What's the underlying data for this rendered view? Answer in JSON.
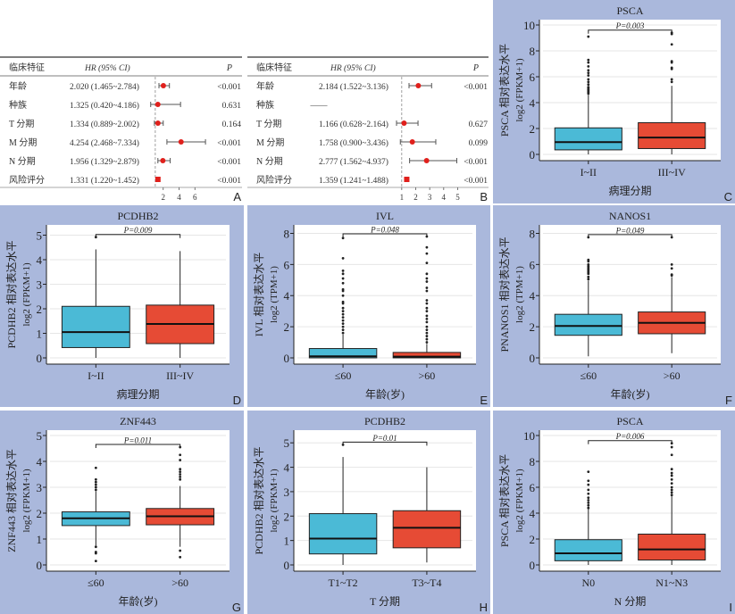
{
  "chart_data": [
    {
      "id": "A",
      "type": "forest",
      "panel_label": "A",
      "columns": {
        "feature": "临床特征",
        "hr": "HR (95% CI)",
        "p": "P"
      },
      "rows": [
        {
          "feature": "年龄",
          "hr_text": "2.020 (1.465~2.784)",
          "hr": 2.02,
          "lo": 1.465,
          "hi": 2.784,
          "p": "<0.001"
        },
        {
          "feature": "种族",
          "hr_text": "1.325 (0.420~4.186)",
          "hr": 1.325,
          "lo": 0.42,
          "hi": 4.186,
          "p": "0.631"
        },
        {
          "feature": "T 分期",
          "hr_text": "1.334 (0.889~2.002)",
          "hr": 1.334,
          "lo": 0.889,
          "hi": 2.002,
          "p": "0.164"
        },
        {
          "feature": "M 分期",
          "hr_text": "4.254 (2.468~7.334)",
          "hr": 4.254,
          "lo": 2.468,
          "hi": 7.334,
          "p": "<0.001"
        },
        {
          "feature": "N 分期",
          "hr_text": "1.956 (1.329~2.879)",
          "hr": 1.956,
          "lo": 1.329,
          "hi": 2.879,
          "p": "<0.001"
        },
        {
          "feature": "风险评分",
          "hr_text": "1.331 (1.220~1.452)",
          "hr": 1.331,
          "lo": 1.22,
          "hi": 1.452,
          "p": "<0.001"
        }
      ],
      "xlim": [
        0,
        8
      ],
      "xticks": [
        2,
        4,
        6
      ],
      "reference_line": 1
    },
    {
      "id": "B",
      "type": "forest",
      "panel_label": "B",
      "columns": {
        "feature": "临床特征",
        "hr": "HR (95% CI)",
        "p": "P"
      },
      "rows": [
        {
          "feature": "年龄",
          "hr_text": "2.184 (1.522~3.136)",
          "hr": 2.184,
          "lo": 1.522,
          "hi": 3.136,
          "p": "<0.001"
        },
        {
          "feature": "种族",
          "hr_text": "——",
          "hr": null,
          "lo": null,
          "hi": null,
          "p": ""
        },
        {
          "feature": "T 分期",
          "hr_text": "1.166 (0.628~2.164)",
          "hr": 1.166,
          "lo": 0.628,
          "hi": 2.164,
          "p": "0.627"
        },
        {
          "feature": "M 分期",
          "hr_text": "1.758 (0.900~3.436)",
          "hr": 1.758,
          "lo": 0.9,
          "hi": 3.436,
          "p": "0.099"
        },
        {
          "feature": "N 分期",
          "hr_text": "2.777 (1.562~4.937)",
          "hr": 2.777,
          "lo": 1.562,
          "hi": 4.937,
          "p": "<0.001"
        },
        {
          "feature": "风险评分",
          "hr_text": "1.359 (1.241~1.488)",
          "hr": 1.359,
          "lo": 1.241,
          "hi": 1.488,
          "p": "<0.001"
        }
      ],
      "xlim": [
        0.5,
        5.8
      ],
      "xticks": [
        1,
        2,
        3,
        4,
        5
      ],
      "reference_line": 1
    },
    {
      "id": "C",
      "type": "box",
      "panel_label": "C",
      "title": "PSCA",
      "pvalue": "P=0.003",
      "ylabel": "PSCA 相对表达水平",
      "ylabel2": "log2 (FPKM+1)",
      "xlabel": "病理分期",
      "ylim": [
        0,
        10
      ],
      "yticks": [
        0,
        2,
        4,
        6,
        8,
        10
      ],
      "groups": [
        {
          "name": "I~II",
          "min": 0.0,
          "q1": 0.35,
          "median": 0.95,
          "q3": 2.05,
          "max": 4.6,
          "outliers": [
            4.7,
            4.8,
            4.9,
            5.0,
            5.1,
            5.2,
            5.4,
            5.6,
            5.8,
            6.1,
            6.3,
            6.5,
            6.8,
            7.1,
            7.3,
            9.1
          ]
        },
        {
          "name": "III~IV",
          "min": 0.0,
          "q1": 0.45,
          "median": 1.3,
          "q3": 2.45,
          "max": 5.3,
          "outliers": [
            5.6,
            5.8,
            6.6,
            6.7,
            7.1,
            7.2,
            8.5,
            9.3,
            9.4
          ]
        }
      ]
    },
    {
      "id": "D",
      "type": "box",
      "panel_label": "D",
      "title": "PCDHB2",
      "pvalue": "P=0.009",
      "ylabel": "PCDHB2 相对表达水平",
      "ylabel2": "log2 (FPKM+1)",
      "xlabel": "病理分期",
      "ylim": [
        0,
        5.2
      ],
      "yticks": [
        0,
        1,
        2,
        3,
        4,
        5
      ],
      "groups": [
        {
          "name": "I~II",
          "min": 0.0,
          "q1": 0.42,
          "median": 1.05,
          "q3": 2.1,
          "max": 4.42,
          "outliers": [
            4.92
          ]
        },
        {
          "name": "III~IV",
          "min": 0.0,
          "q1": 0.58,
          "median": 1.38,
          "q3": 2.15,
          "max": 4.35,
          "outliers": []
        }
      ]
    },
    {
      "id": "E",
      "type": "box",
      "panel_label": "E",
      "title": "IVL",
      "pvalue": "P=0.048",
      "ylabel": "IVL 相对表达水平",
      "ylabel2": "log2 (TPM+1)",
      "xlabel": "年龄(岁)",
      "ylim": [
        0,
        8.2
      ],
      "yticks": [
        0,
        2,
        4,
        6,
        8
      ],
      "groups": [
        {
          "name": "≤60",
          "min": 0.0,
          "q1": 0.0,
          "median": 0.1,
          "q3": 0.6,
          "max": 1.5,
          "outliers": [
            1.6,
            1.8,
            2.0,
            2.2,
            2.4,
            2.6,
            2.8,
            3.0,
            3.2,
            3.5,
            3.6,
            4.0,
            4.3,
            4.4,
            4.8,
            5.1,
            5.4,
            5.6,
            6.4,
            7.7
          ]
        },
        {
          "name": ">60",
          "min": 0.0,
          "q1": 0.0,
          "median": 0.08,
          "q3": 0.35,
          "max": 0.9,
          "outliers": [
            1.0,
            1.2,
            1.4,
            1.6,
            1.8,
            2.0,
            2.3,
            2.5,
            2.7,
            3.0,
            3.2,
            3.5,
            3.7,
            4.3,
            4.5,
            4.9,
            5.1,
            5.4,
            6.1,
            6.7,
            7.1,
            7.8
          ]
        }
      ]
    },
    {
      "id": "F",
      "type": "box",
      "panel_label": "F",
      "title": "NANOS1",
      "pvalue": "P=0.049",
      "ylabel": "PNANOS1 相对表达水平",
      "ylabel2": "log2 (TPM+1)",
      "xlabel": "年龄(岁)",
      "ylim": [
        0,
        8.2
      ],
      "yticks": [
        0,
        2,
        4,
        6,
        8
      ],
      "groups": [
        {
          "name": "≤60",
          "min": 0.1,
          "q1": 1.45,
          "median": 2.05,
          "q3": 2.8,
          "max": 4.95,
          "outliers": [
            5.05,
            5.2,
            5.4,
            5.5,
            5.6,
            5.7,
            5.8,
            5.9,
            6.0,
            6.2,
            6.3,
            7.75
          ]
        },
        {
          "name": ">60",
          "min": 0.3,
          "q1": 1.55,
          "median": 2.25,
          "q3": 2.95,
          "max": 5.2,
          "outliers": [
            5.3,
            5.35,
            5.75,
            6.0,
            7.75
          ]
        }
      ]
    },
    {
      "id": "G",
      "type": "box",
      "panel_label": "G",
      "title": "ZNF443",
      "pvalue": "P=0.011",
      "ylabel": "ZNF443 相对表达水平",
      "ylabel2": "log2 (FPKM+1)",
      "xlabel": "年龄(岁)",
      "ylim": [
        0,
        5
      ],
      "yticks": [
        0,
        1,
        2,
        3,
        4,
        5
      ],
      "groups": [
        {
          "name": "≤60",
          "min": 0.75,
          "q1": 1.52,
          "median": 1.8,
          "q3": 2.05,
          "max": 2.85,
          "outliers": [
            0.15,
            0.45,
            0.5,
            0.7,
            2.9,
            3.0,
            3.1,
            3.2,
            3.3,
            3.75
          ]
        },
        {
          "name": ">60",
          "min": 0.7,
          "q1": 1.55,
          "median": 1.88,
          "q3": 2.18,
          "max": 3.05,
          "outliers": [
            0.3,
            0.55,
            3.3,
            3.4,
            3.5,
            3.6,
            3.7,
            4.05,
            4.25,
            4.55
          ]
        }
      ]
    },
    {
      "id": "H",
      "type": "box",
      "panel_label": "H",
      "title": "PCDHB2",
      "pvalue": "P=0.01",
      "ylabel": "PCDHB2 相对表达水平",
      "ylabel2": "log2 (FPKM+1)",
      "xlabel": "T 分期",
      "ylim": [
        0,
        5.3
      ],
      "yticks": [
        0,
        1,
        2,
        3,
        4,
        5
      ],
      "groups": [
        {
          "name": "T1~T2",
          "min": 0.0,
          "q1": 0.45,
          "median": 1.08,
          "q3": 2.1,
          "max": 4.42,
          "outliers": [
            4.92
          ]
        },
        {
          "name": "T3~T4",
          "min": 0.1,
          "q1": 0.7,
          "median": 1.52,
          "q3": 2.22,
          "max": 4.0,
          "outliers": []
        }
      ]
    },
    {
      "id": "I",
      "type": "box",
      "panel_label": "I",
      "title": "PSCA",
      "pvalue": "P=0.006",
      "ylabel": "PSCA 相对表达水平",
      "ylabel2": "log2 (FPKM+1)",
      "xlabel": "N 分期",
      "ylim": [
        0,
        10
      ],
      "yticks": [
        0,
        2,
        4,
        6,
        8,
        10
      ],
      "groups": [
        {
          "name": "N0",
          "min": 0.0,
          "q1": 0.32,
          "median": 0.9,
          "q3": 1.95,
          "max": 4.3,
          "outliers": [
            4.4,
            4.6,
            4.8,
            5.0,
            5.2,
            5.5,
            5.8,
            6.2,
            6.5,
            7.2
          ]
        },
        {
          "name": "N1~N3",
          "min": 0.0,
          "q1": 0.38,
          "median": 1.2,
          "q3": 2.38,
          "max": 5.3,
          "outliers": [
            5.4,
            5.6,
            5.8,
            6.0,
            6.3,
            6.6,
            6.9,
            7.1,
            7.4,
            8.5,
            9.1,
            9.4
          ]
        }
      ]
    }
  ],
  "colors": {
    "panel_bg": "#aab8dc",
    "plot_bg": "#ffffff",
    "group1_fill": "#4bbad6",
    "group2_fill": "#e64b35",
    "point": "#e0201c",
    "grid": "#e6e6e6"
  }
}
